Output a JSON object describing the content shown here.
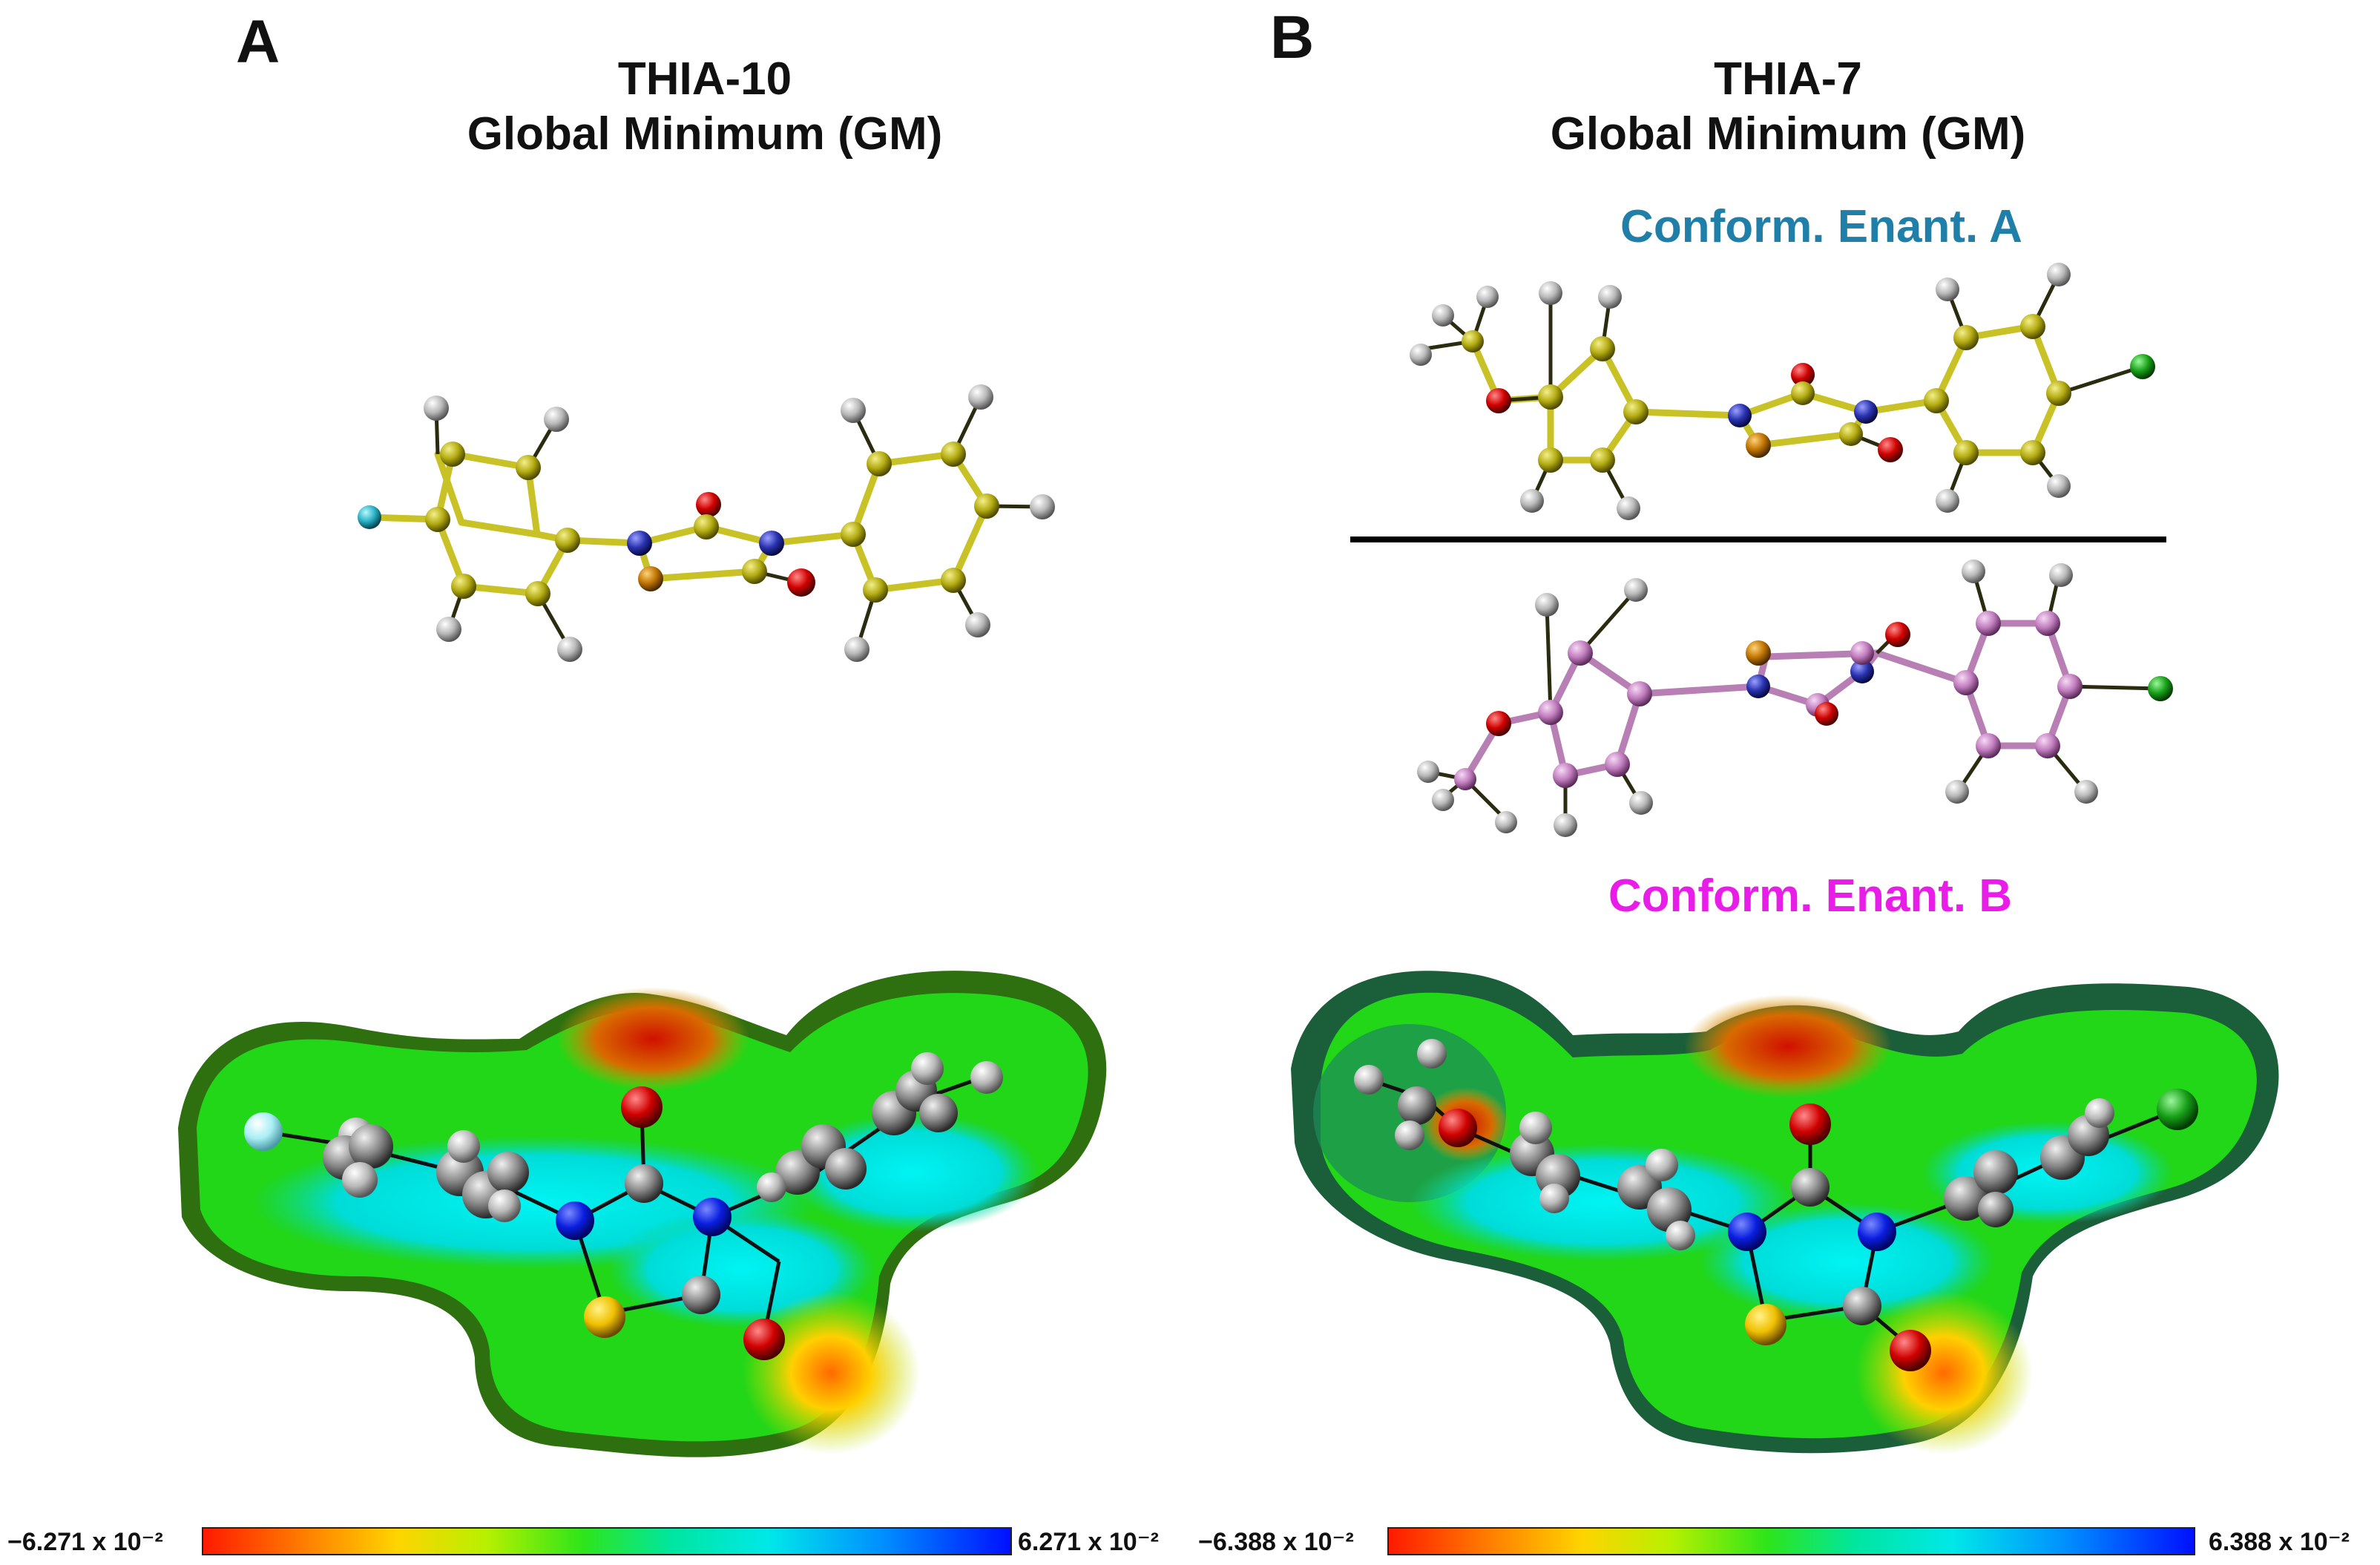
{
  "panels": [
    {
      "letter": "A",
      "title_line1": "THIA-10",
      "title_line2": "Global Minimum (GM)",
      "scale_min": "−6.271 x 10⁻²",
      "scale_max": "6.271 x 10⁻²"
    },
    {
      "letter": "B",
      "title_line1": "THIA-7",
      "title_line2": "Global Minimum (GM)",
      "conformer_a": "Conform. Enant. A",
      "conformer_b": "Conform. Enant. B",
      "scale_min": "−6.388 x 10⁻²",
      "scale_max": "6.388 x 10⁻²"
    }
  ],
  "colors": {
    "carbon_yellow": "#b9b21a",
    "carbon_pink": "#c68bc4",
    "hydrogen": "#bdbdbd",
    "oxygen": "#d40000",
    "nitrogen": "#2a32a8",
    "sulfur": "#c87a00",
    "fluorine": "#2fb8c8",
    "chlorine": "#1ea01e",
    "conformer_a_label": "#1f7fa8",
    "conformer_b_label": "#e81ee8"
  }
}
